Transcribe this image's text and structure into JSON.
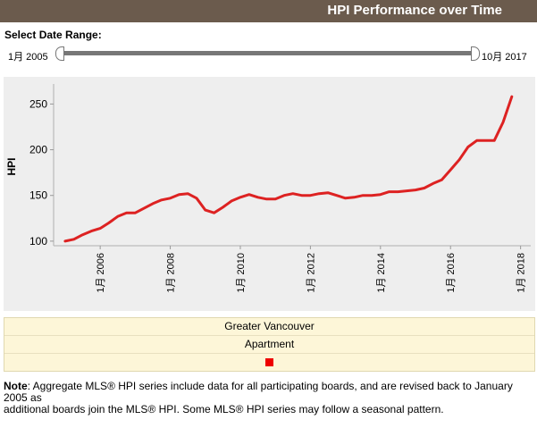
{
  "header": {
    "title": "HPI Performance over Time"
  },
  "date_range": {
    "label": "Select Date Range:",
    "start": "1月 2005",
    "end": "10月 2017"
  },
  "legend": {
    "region": "Greater Vancouver",
    "property_type": "Apartment",
    "swatch_color": "#ee0000"
  },
  "note": {
    "prefix": "Note",
    "line1": ": Aggregate MLS® HPI series include data for all participating boards, and are revised back to January 2005 as",
    "line2": "additional boards join the MLS® HPI. Some MLS® HPI series may follow a seasonal pattern."
  },
  "chart_data": {
    "type": "line",
    "ylabel": "HPI",
    "xlabel": "",
    "ylim": [
      95,
      268
    ],
    "xlim": [
      2004.67,
      2018.29
    ],
    "y_ticks": [
      100,
      150,
      200,
      250
    ],
    "x_ticks": [
      {
        "value": 2006,
        "label": "1月 2006"
      },
      {
        "value": 2008,
        "label": "1月 2008"
      },
      {
        "value": 2010,
        "label": "1月 2010"
      },
      {
        "value": 2012,
        "label": "1月 2012"
      },
      {
        "value": 2014,
        "label": "1月 2014"
      },
      {
        "value": 2016,
        "label": "1月 2016"
      },
      {
        "value": 2018,
        "label": "1月 2018"
      }
    ],
    "grid": false,
    "line_color": "#dd2222",
    "series": [
      {
        "x": [
          2005.0,
          2005.25,
          2005.5,
          2005.75,
          2006.0,
          2006.25,
          2006.5,
          2006.75,
          2007.0,
          2007.25,
          2007.5,
          2007.75,
          2008.0,
          2008.25,
          2008.5,
          2008.75,
          2009.0,
          2009.25,
          2009.5,
          2009.75,
          2010.0,
          2010.25,
          2010.5,
          2010.75,
          2011.0,
          2011.25,
          2011.5,
          2011.75,
          2012.0,
          2012.25,
          2012.5,
          2012.75,
          2013.0,
          2013.25,
          2013.5,
          2013.75,
          2014.0,
          2014.25,
          2014.5,
          2014.75,
          2015.0,
          2015.25,
          2015.5,
          2015.75,
          2016.0,
          2016.25,
          2016.5,
          2016.75,
          2017.0,
          2017.25,
          2017.5,
          2017.75
        ],
        "y": [
          100,
          102,
          107,
          111,
          114,
          120,
          127,
          131,
          131,
          136,
          141,
          145,
          147,
          151,
          152,
          147,
          134,
          131,
          137,
          144,
          148,
          151,
          148,
          146,
          146,
          150,
          152,
          150,
          150,
          152,
          153,
          150,
          147,
          148,
          150,
          150,
          151,
          154,
          154,
          155,
          156,
          158,
          163,
          167,
          178,
          189,
          203,
          210,
          210,
          210,
          230,
          258
        ]
      }
    ]
  }
}
